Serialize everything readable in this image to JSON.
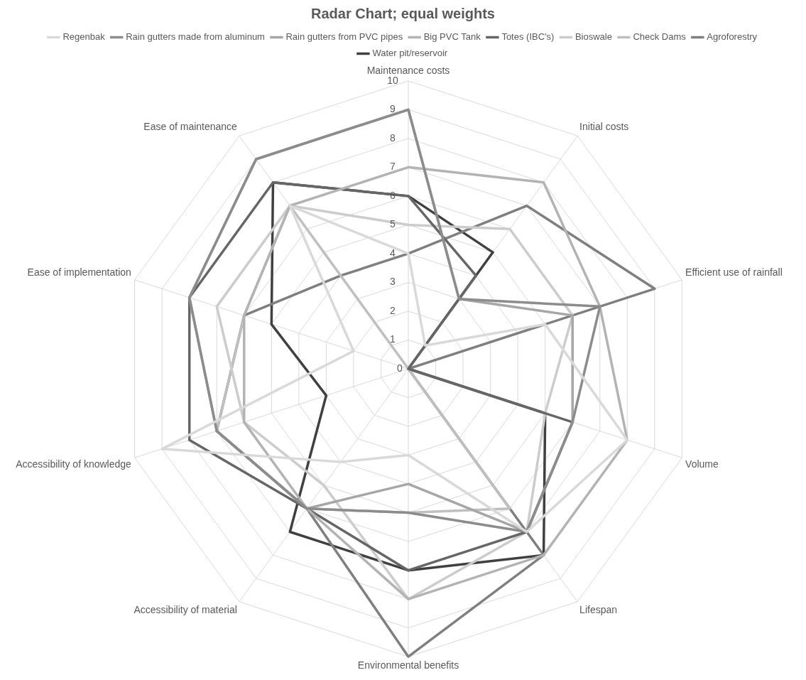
{
  "chart_data": {
    "type": "radar",
    "title": "Radar Chart; equal weights",
    "categories": [
      "Maintenance costs",
      "Initial costs",
      "Efficient use of rainfall",
      "Volume",
      "Lifespan",
      "Environmental benefits",
      "Accessibility of material",
      "Accessibility of knowledge",
      "Ease of implementation",
      "Ease of maintenance"
    ],
    "series": [
      {
        "name": "Regenbak",
        "color": "#d9d9d9",
        "values": [
          4,
          1,
          5,
          8,
          7,
          3,
          4,
          9,
          2,
          7
        ]
      },
      {
        "name": "Rain gutters made from aluminum",
        "color": "#8c8c8c",
        "values": [
          9,
          3,
          7,
          6,
          7,
          5,
          6,
          7,
          8,
          9
        ]
      },
      {
        "name": "Rain gutters from PVC pipes",
        "color": "#a6a6a6",
        "values": [
          9,
          3,
          6,
          6,
          7,
          4,
          6,
          7,
          8,
          9
        ]
      },
      {
        "name": "Big PVC Tank",
        "color": "#b3b3b3",
        "values": [
          7,
          8,
          7,
          8,
          8,
          8,
          6,
          6,
          6,
          7
        ]
      },
      {
        "name": "Totes (IBC's)",
        "color": "#666666",
        "values": [
          6,
          4,
          0,
          6,
          7,
          7,
          6,
          8,
          8,
          8
        ]
      },
      {
        "name": "Bioswale",
        "color": "#cccccc",
        "values": [
          5,
          6,
          6,
          5,
          7,
          8,
          5,
          6,
          7,
          7
        ]
      },
      {
        "name": "Check Dams",
        "color": "#bfbfbf",
        "values": [
          0,
          0,
          0,
          0,
          6,
          5,
          6,
          7,
          6,
          7
        ]
      },
      {
        "name": "Agroforestry",
        "color": "#7f7f7f",
        "values": [
          4,
          7,
          9,
          0,
          8,
          10,
          6,
          7,
          6,
          4
        ]
      },
      {
        "name": "Water pit/reservoir",
        "color": "#404040",
        "values": [
          6,
          5,
          0,
          5,
          8,
          7,
          7,
          3,
          5,
          8
        ]
      }
    ],
    "ylim": [
      0,
      10
    ],
    "yticks": [
      0,
      1,
      2,
      3,
      4,
      5,
      6,
      7,
      8,
      9,
      10
    ],
    "grid": true,
    "legend": "top",
    "marker": "none",
    "line_style": "solid"
  }
}
